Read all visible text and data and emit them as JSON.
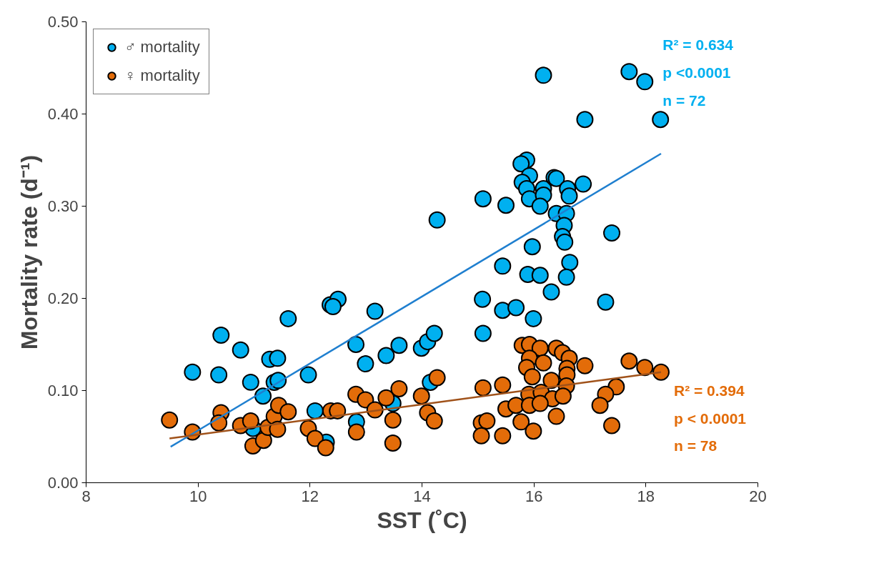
{
  "chart_data": {
    "type": "scatter",
    "xlabel": "SST (˚C)",
    "ylabel": "Mortality rate (d⁻¹)",
    "xlim": [
      8,
      20
    ],
    "xticks": [
      8,
      10,
      12,
      14,
      16,
      18,
      20
    ],
    "ylim": [
      0,
      0.5
    ],
    "yticks": [
      {
        "value": 0,
        "label": "0.00"
      },
      {
        "value": 0.1,
        "label": "0.10"
      },
      {
        "value": 0.2,
        "label": "0.20"
      },
      {
        "value": 0.3,
        "label": "0.30"
      },
      {
        "value": 0.4,
        "label": "0.40"
      },
      {
        "value": 0.5,
        "label": "0.50"
      }
    ],
    "grid": false,
    "legend": "top left",
    "marker": "circle",
    "series": [
      {
        "name": "♂ mortality",
        "color": "#00b0f0",
        "x": [
          9.9,
          10.41,
          10.76,
          10.37,
          10.94,
          11.16,
          11.28,
          11.42,
          11.36,
          11.43,
          11.61,
          12.36,
          12.5,
          12.41,
          12.82,
          12.99,
          13.16,
          11.97,
          13.36,
          13.59,
          13.99,
          14.1,
          14.22,
          14.15,
          12.09,
          13.48,
          12.83,
          10.98,
          12.29,
          14.27,
          15.87,
          15.77,
          15.92,
          15.79,
          15.87,
          15.92,
          16.17,
          16.17,
          16.11,
          16.36,
          16.4,
          16.6,
          16.63,
          16.88,
          15.09,
          15.5,
          16.4,
          16.58,
          16.54,
          16.51,
          16.55,
          17.39,
          15.97,
          16.64,
          15.44,
          15.89,
          16.11,
          16.58,
          16.31,
          15.08,
          15.44,
          15.68,
          15.99,
          17.28,
          15.09,
          16.17,
          16.91,
          17.7,
          17.98,
          18.26
        ],
        "values": [
          0.12,
          0.16,
          0.144,
          0.117,
          0.109,
          0.094,
          0.134,
          0.135,
          0.109,
          0.111,
          0.178,
          0.193,
          0.199,
          0.191,
          0.15,
          0.129,
          0.186,
          0.117,
          0.138,
          0.149,
          0.146,
          0.153,
          0.162,
          0.109,
          0.078,
          0.086,
          0.066,
          0.059,
          0.044,
          0.285,
          0.35,
          0.346,
          0.333,
          0.326,
          0.319,
          0.308,
          0.319,
          0.312,
          0.3,
          0.331,
          0.33,
          0.319,
          0.311,
          0.324,
          0.308,
          0.301,
          0.292,
          0.292,
          0.279,
          0.267,
          0.261,
          0.271,
          0.256,
          0.239,
          0.235,
          0.226,
          0.225,
          0.223,
          0.207,
          0.199,
          0.187,
          0.19,
          0.178,
          0.196,
          0.162,
          0.442,
          0.394,
          0.446,
          0.435,
          0.394
        ]
      },
      {
        "name": "♀ mortality",
        "color": "#e36c09",
        "x": [
          9.49,
          9.9,
          10.41,
          10.37,
          10.76,
          10.94,
          10.98,
          11.17,
          11.25,
          11.36,
          11.44,
          11.61,
          11.42,
          11.97,
          12.09,
          12.28,
          12.37,
          12.49,
          12.82,
          12.99,
          12.83,
          13.16,
          13.36,
          13.48,
          13.48,
          13.59,
          13.99,
          14.1,
          14.22,
          14.27,
          15.09,
          15.44,
          15.06,
          15.16,
          15.06,
          15.44,
          15.79,
          15.92,
          16.11,
          16.4,
          16.51,
          16.63,
          15.92,
          16.17,
          15.87,
          15.97,
          16.59,
          16.59,
          16.91,
          16.31,
          16.58,
          15.91,
          16.13,
          16.33,
          16.52,
          15.5,
          15.68,
          15.92,
          16.11,
          15.77,
          16.4,
          15.99,
          17.7,
          17.98,
          18.27,
          17.47,
          17.28,
          17.18,
          17.39
        ],
        "values": [
          0.068,
          0.055,
          0.076,
          0.065,
          0.062,
          0.067,
          0.04,
          0.046,
          0.06,
          0.072,
          0.084,
          0.077,
          0.058,
          0.059,
          0.048,
          0.038,
          0.078,
          0.078,
          0.096,
          0.09,
          0.055,
          0.079,
          0.092,
          0.068,
          0.043,
          0.102,
          0.094,
          0.076,
          0.067,
          0.114,
          0.103,
          0.106,
          0.065,
          0.067,
          0.051,
          0.051,
          0.149,
          0.15,
          0.146,
          0.146,
          0.141,
          0.135,
          0.135,
          0.13,
          0.125,
          0.115,
          0.124,
          0.117,
          0.127,
          0.111,
          0.105,
          0.096,
          0.098,
          0.091,
          0.094,
          0.08,
          0.084,
          0.084,
          0.086,
          0.066,
          0.072,
          0.056,
          0.132,
          0.125,
          0.12,
          0.104,
          0.096,
          0.084,
          0.062
        ]
      },
      {
        "type": "line",
        "marker": "none",
        "color": "#1f7fcf",
        "x": [
          9.51,
          18.27
        ],
        "values": [
          0.039,
          0.357
        ]
      },
      {
        "type": "line",
        "marker": "none",
        "color": "#a0521a",
        "x": [
          9.49,
          18.27
        ],
        "values": [
          0.048,
          0.12
        ]
      }
    ],
    "annotations": [
      "R² = 0.634",
      "p <0.0001",
      "n = 72",
      "R² = 0.394",
      "p < 0.0001",
      "n = 78"
    ]
  }
}
